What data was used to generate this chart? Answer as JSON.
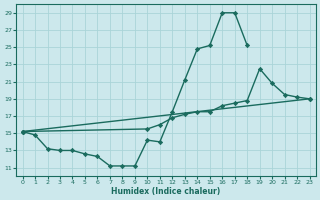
{
  "xlabel": "Humidex (Indice chaleur)",
  "bg_color": "#cce8ec",
  "line_color": "#1a6b5e",
  "grid_color": "#aad4d8",
  "xlim": [
    -0.5,
    23.5
  ],
  "ylim": [
    10,
    30
  ],
  "yticks": [
    11,
    13,
    15,
    17,
    19,
    21,
    23,
    25,
    27,
    29
  ],
  "xticks": [
    0,
    1,
    2,
    3,
    4,
    5,
    6,
    7,
    8,
    9,
    10,
    11,
    12,
    13,
    14,
    15,
    16,
    17,
    18,
    19,
    20,
    21,
    22,
    23
  ],
  "line1_x": [
    0,
    1,
    2,
    3,
    4,
    5,
    6,
    7,
    8,
    9,
    10,
    11,
    12,
    13,
    14,
    15,
    16,
    17,
    18
  ],
  "line1_y": [
    15.2,
    14.8,
    13.2,
    13.0,
    13.0,
    12.6,
    12.3,
    11.2,
    11.2,
    11.2,
    14.2,
    14.0,
    17.5,
    21.2,
    24.8,
    25.2,
    29.0,
    29.0,
    25.2
  ],
  "line2_x": [
    0,
    10,
    11,
    12,
    13,
    14,
    15,
    16,
    17,
    18,
    19,
    20,
    21,
    22,
    23
  ],
  "line2_y": [
    15.2,
    15.5,
    16.0,
    16.8,
    17.2,
    17.5,
    17.5,
    18.2,
    18.5,
    18.8,
    22.5,
    20.8,
    19.5,
    19.2,
    19.0
  ],
  "line3_x": [
    0,
    23
  ],
  "line3_y": [
    15.2,
    19.0
  ],
  "marker": "D",
  "markersize": 2.2,
  "linewidth": 1.0
}
